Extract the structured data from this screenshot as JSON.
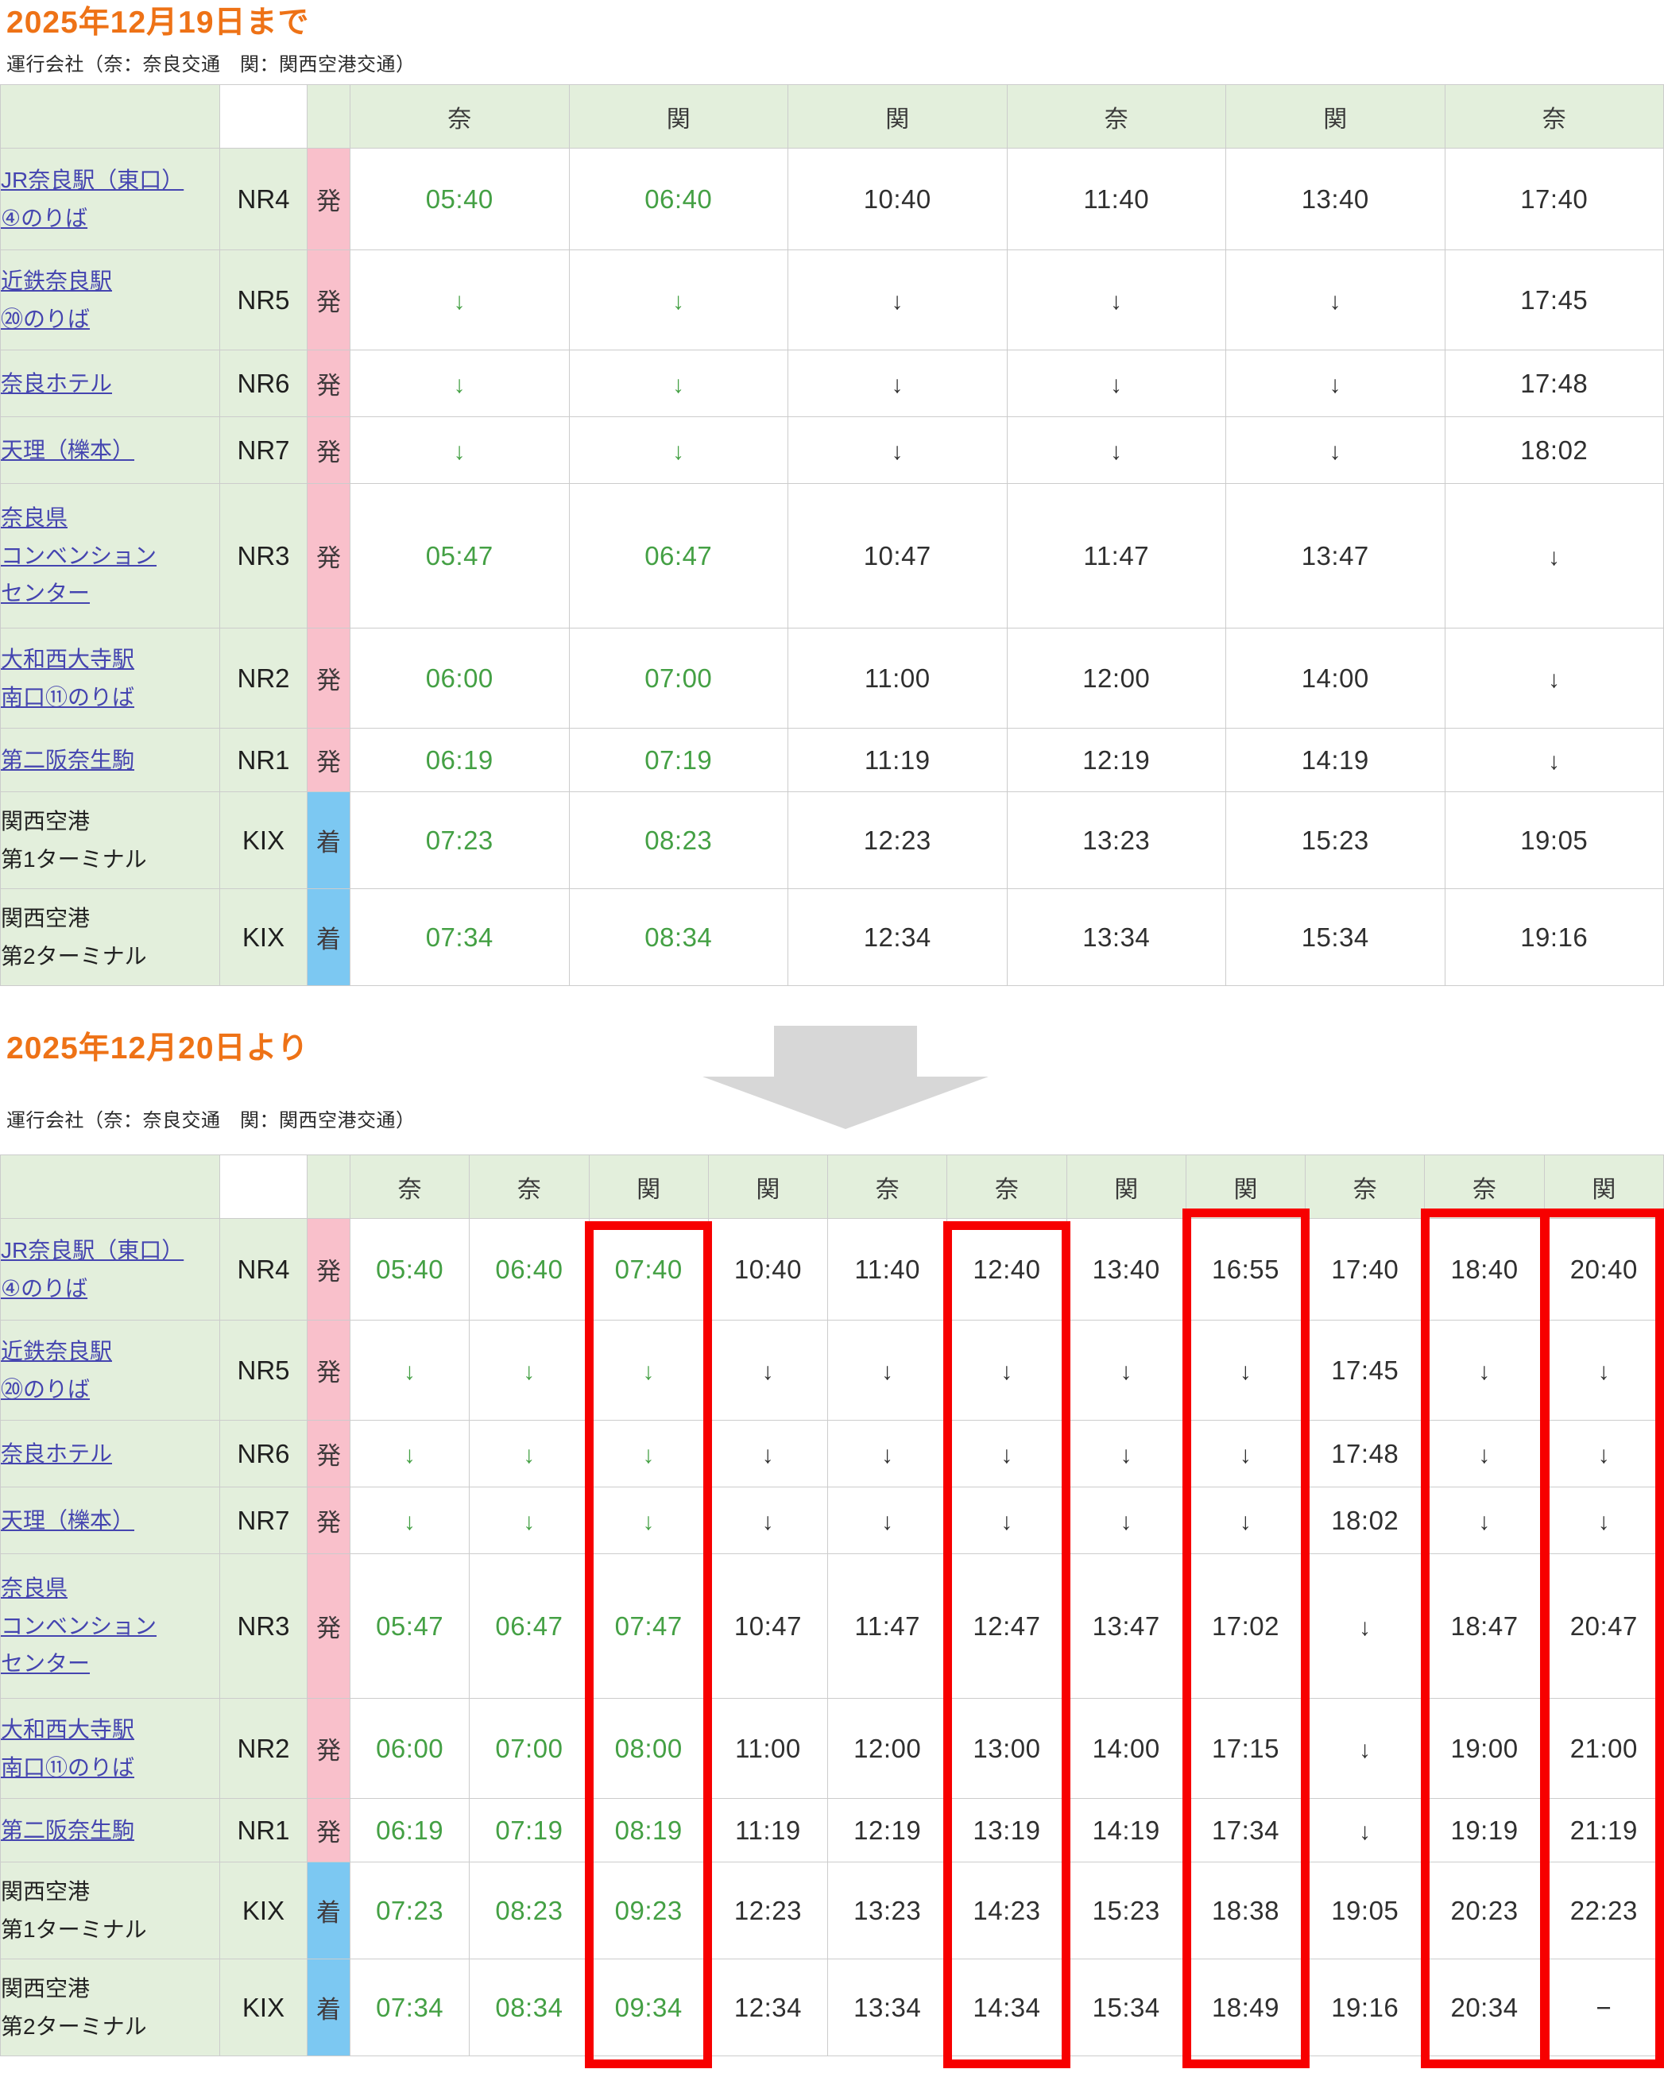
{
  "sections": [
    {
      "title": "2025年12月19日まで",
      "note": "運行会社（奈：奈良交通　関：関西空港交通）"
    },
    {
      "title": "2025年12月20日より",
      "note": "運行会社（奈：奈良交通　関：関西空港交通）"
    }
  ],
  "legend": {
    "departure_mark": "発",
    "arrival_mark": "着",
    "nara_kotsu": "奈",
    "kansai_airport_transport": "関"
  },
  "stations": [
    {
      "lines": [
        "JR奈良駅（東口）",
        "④のりば"
      ],
      "link": true,
      "code": "NR4",
      "mark": "発"
    },
    {
      "lines": [
        "近鉄奈良駅",
        "⑳のりば"
      ],
      "link": true,
      "code": "NR5",
      "mark": "発"
    },
    {
      "lines": [
        "奈良ホテル"
      ],
      "link": true,
      "code": "NR6",
      "mark": "発"
    },
    {
      "lines": [
        "天理（櫟本）"
      ],
      "link": true,
      "code": "NR7",
      "mark": "発"
    },
    {
      "lines": [
        "奈良県",
        "コンベンション",
        "センター"
      ],
      "link": true,
      "code": "NR3",
      "mark": "発"
    },
    {
      "lines": [
        "大和西大寺駅",
        "南口⑪のりば"
      ],
      "link": true,
      "code": "NR2",
      "mark": "発"
    },
    {
      "lines": [
        "第二阪奈生駒"
      ],
      "link": true,
      "code": "NR1",
      "mark": "発"
    },
    {
      "lines": [
        "関西空港",
        "第1ターミナル"
      ],
      "link": false,
      "code": "KIX",
      "mark": "着"
    },
    {
      "lines": [
        "関西空港",
        "第2ターミナル"
      ],
      "link": false,
      "code": "KIX",
      "mark": "着"
    }
  ],
  "timetables": [
    {
      "name": "until-2025-12-19",
      "operators": [
        "奈",
        "関",
        "関",
        "奈",
        "関",
        "奈"
      ],
      "rows": [
        [
          "05:40",
          "06:40",
          "10:40",
          "11:40",
          "13:40",
          "17:40"
        ],
        [
          "↓",
          "↓",
          "↓",
          "↓",
          "↓",
          "17:45"
        ],
        [
          "↓",
          "↓",
          "↓",
          "↓",
          "↓",
          "17:48"
        ],
        [
          "↓",
          "↓",
          "↓",
          "↓",
          "↓",
          "18:02"
        ],
        [
          "05:47",
          "06:47",
          "10:47",
          "11:47",
          "13:47",
          "↓"
        ],
        [
          "06:00",
          "07:00",
          "11:00",
          "12:00",
          "14:00",
          "↓"
        ],
        [
          "06:19",
          "07:19",
          "11:19",
          "12:19",
          "14:19",
          "↓"
        ],
        [
          "07:23",
          "08:23",
          "12:23",
          "13:23",
          "15:23",
          "19:05"
        ],
        [
          "07:34",
          "08:34",
          "12:34",
          "13:34",
          "15:34",
          "19:16"
        ]
      ],
      "green_columns": [
        0,
        1
      ],
      "highlight_columns": []
    },
    {
      "name": "from-2025-12-20",
      "operators": [
        "奈",
        "奈",
        "関",
        "関",
        "奈",
        "奈",
        "関",
        "関",
        "奈",
        "奈",
        "関"
      ],
      "rows": [
        [
          "05:40",
          "06:40",
          "07:40",
          "10:40",
          "11:40",
          "12:40",
          "13:40",
          "16:55",
          "17:40",
          "18:40",
          "20:40"
        ],
        [
          "↓",
          "↓",
          "↓",
          "↓",
          "↓",
          "↓",
          "↓",
          "↓",
          "17:45",
          "↓",
          "↓"
        ],
        [
          "↓",
          "↓",
          "↓",
          "↓",
          "↓",
          "↓",
          "↓",
          "↓",
          "17:48",
          "↓",
          "↓"
        ],
        [
          "↓",
          "↓",
          "↓",
          "↓",
          "↓",
          "↓",
          "↓",
          "↓",
          "18:02",
          "↓",
          "↓"
        ],
        [
          "05:47",
          "06:47",
          "07:47",
          "10:47",
          "11:47",
          "12:47",
          "13:47",
          "17:02",
          "↓",
          "18:47",
          "20:47"
        ],
        [
          "06:00",
          "07:00",
          "08:00",
          "11:00",
          "12:00",
          "13:00",
          "14:00",
          "17:15",
          "↓",
          "19:00",
          "21:00"
        ],
        [
          "06:19",
          "07:19",
          "08:19",
          "11:19",
          "12:19",
          "13:19",
          "14:19",
          "17:34",
          "↓",
          "19:19",
          "21:19"
        ],
        [
          "07:23",
          "08:23",
          "09:23",
          "12:23",
          "13:23",
          "14:23",
          "15:23",
          "18:38",
          "19:05",
          "20:23",
          "22:23"
        ],
        [
          "07:34",
          "08:34",
          "09:34",
          "12:34",
          "13:34",
          "14:34",
          "15:34",
          "18:49",
          "19:16",
          "20:34",
          "−"
        ]
      ],
      "green_columns": [
        0,
        1,
        2
      ],
      "highlight_columns": [
        2,
        5,
        7,
        9,
        10
      ]
    }
  ],
  "colors": {
    "title_orange": "#ee7216",
    "link_blue": "#4545b0",
    "time_green": "#44a044",
    "time_dark": "#2f2f2f",
    "header_green_bg": "#e3efdc",
    "departure_pink_bg": "#f9c0cb",
    "arrival_blue_bg": "#7cc8f2",
    "grid_border": "#cccccc",
    "highlight_red": "#f70000",
    "arrow_gray": "#d7d7d7"
  }
}
